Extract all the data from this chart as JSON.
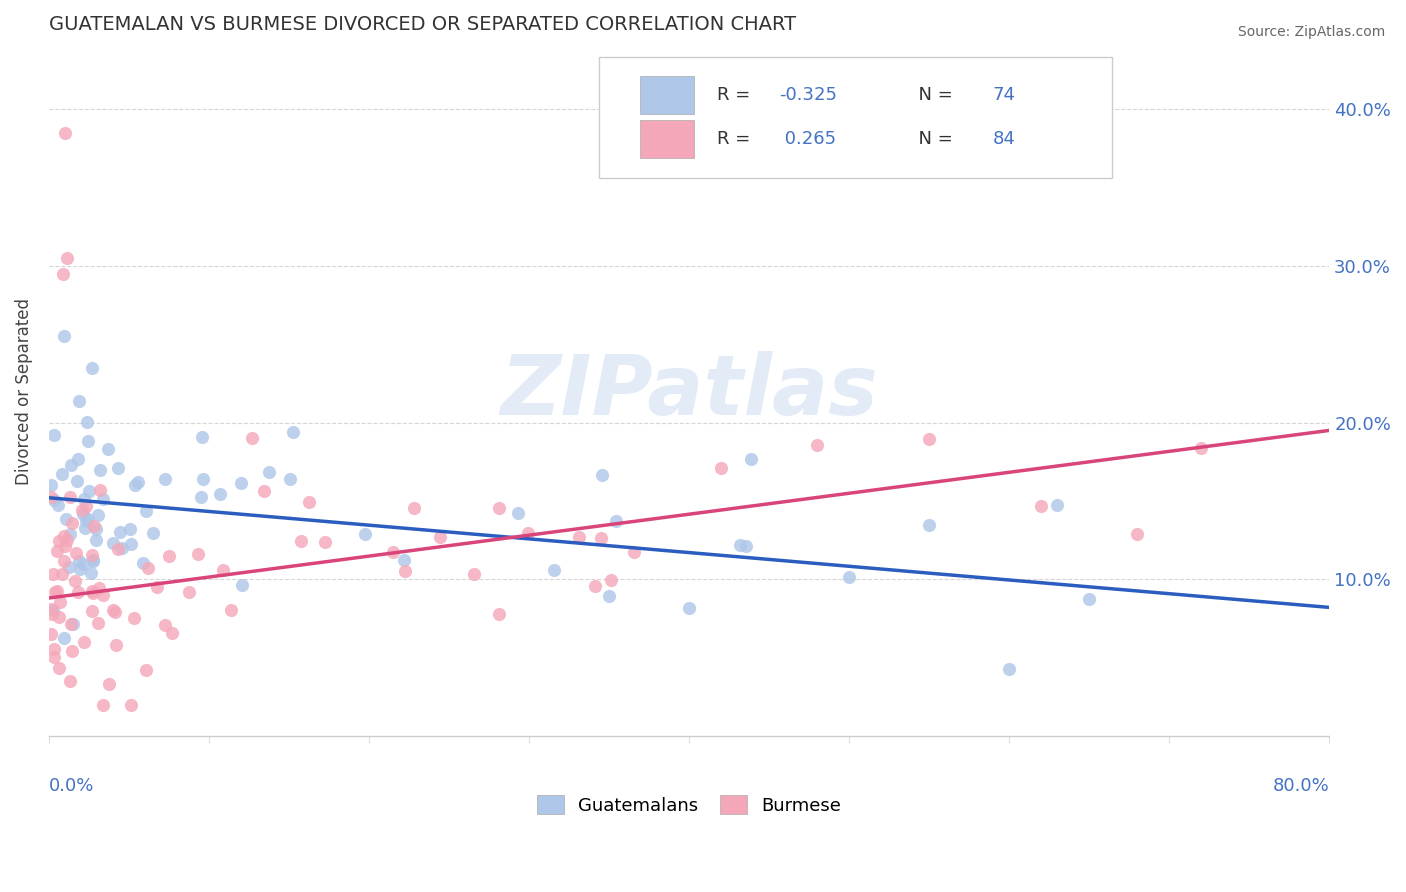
{
  "title": "GUATEMALAN VS BURMESE DIVORCED OR SEPARATED CORRELATION CHART",
  "source": "Source: ZipAtlas.com",
  "ylabel": "Divorced or Separated",
  "ytick_values": [
    0.1,
    0.2,
    0.3,
    0.4
  ],
  "ytick_labels": [
    "10.0%",
    "20.0%",
    "30.0%",
    "40.0%"
  ],
  "xmin": 0.0,
  "xmax": 0.8,
  "ymin": 0.0,
  "ymax": 0.44,
  "guatemalan_R": -0.325,
  "guatemalan_N": 74,
  "burmese_R": 0.265,
  "burmese_N": 84,
  "guatemalan_color": "#aec6e8",
  "guatemalan_line_color": "#2b5cbf",
  "burmese_color": "#f4a7b9",
  "burmese_line_color": "#d9457a",
  "legend_guatemalan_label": "Guatemalans",
  "legend_burmese_label": "Burmese",
  "watermark_text": "ZIPatlas",
  "background_color": "#ffffff",
  "grid_color": "#cccccc",
  "title_color": "#333333",
  "axis_label_color": "#4472c4",
  "legend_text_color_label": "#333333",
  "legend_text_color_value": "#4472c4",
  "guat_line_y0": 0.152,
  "guat_line_y1": 0.082,
  "bur_line_y0": 0.088,
  "bur_line_y1": 0.195
}
